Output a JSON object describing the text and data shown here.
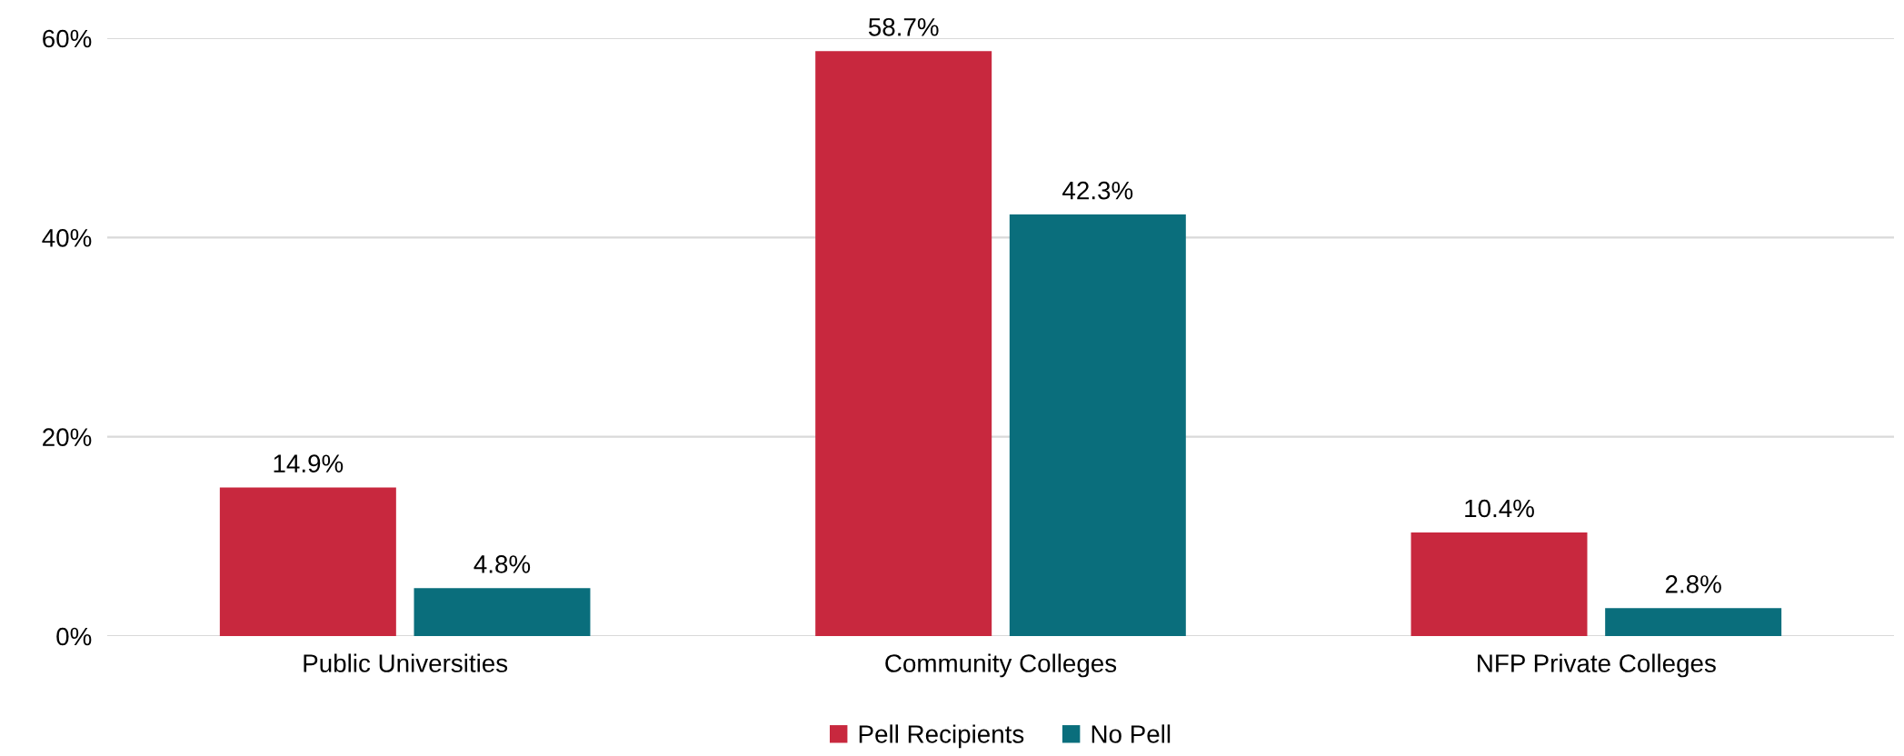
{
  "chart_data": {
    "type": "bar",
    "categories": [
      "Public Universities",
      "Community Colleges",
      "NFP Private Colleges"
    ],
    "series": [
      {
        "name": "Pell Recipients",
        "color": "#c8283e",
        "values": [
          14.9,
          58.7,
          10.4
        ],
        "value_labels": [
          "14.9%",
          "58.7%",
          "10.4%"
        ]
      },
      {
        "name": "No Pell",
        "color": "#0a6e7c",
        "values": [
          4.8,
          42.3,
          2.8
        ],
        "value_labels": [
          "4.8%",
          "42.3%",
          "2.8%"
        ]
      }
    ],
    "ylim": [
      0,
      60
    ],
    "yticks": [
      {
        "value": 0,
        "label": "0%"
      },
      {
        "value": 20,
        "label": "20%"
      },
      {
        "value": 40,
        "label": "40%"
      },
      {
        "value": 60,
        "label": "60%"
      }
    ],
    "grid": "y",
    "legend": "bottom"
  }
}
